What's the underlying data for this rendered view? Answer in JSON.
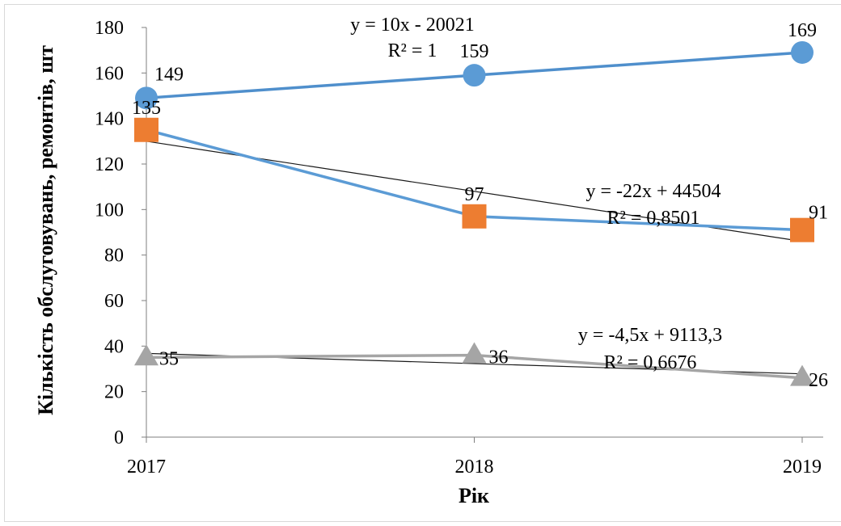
{
  "chart_data": {
    "type": "line",
    "title": "",
    "xlabel": "Рік",
    "ylabel": "Кількість обслуговувань, ремонтів, шт",
    "categories": [
      "2017",
      "2018",
      "2019"
    ],
    "x": [
      2017,
      2018,
      2019
    ],
    "ylim": [
      0,
      180
    ],
    "yticks": [
      0,
      20,
      40,
      60,
      80,
      100,
      120,
      140,
      160,
      180
    ],
    "grid": false,
    "legend": "none",
    "series": [
      {
        "values": [
          149,
          159,
          169
        ],
        "marker": "circle",
        "color": "#5B9BD5",
        "line_color": "#4F8FCC",
        "trendline": {
          "equation": "y = 10x - 20021",
          "r2": "R² = 1",
          "slope": 10,
          "intercept": -20021
        }
      },
      {
        "values": [
          135,
          97,
          91
        ],
        "marker": "square",
        "color": "#ED7D31",
        "line_color": "#5B9BD5",
        "trendline": {
          "equation": "y = -22x + 44504",
          "r2": "R² = 0,8501",
          "slope": -22,
          "intercept": 44504
        }
      },
      {
        "values": [
          35,
          36,
          26
        ],
        "marker": "triangle",
        "color": "#A5A5A5",
        "line_color": "#A5A5A5",
        "trendline": {
          "equation": "y = -4,5x + 9113,3",
          "r2": "R² = 0,6676",
          "slope": -4.5,
          "intercept": 9113.3
        }
      }
    ]
  }
}
